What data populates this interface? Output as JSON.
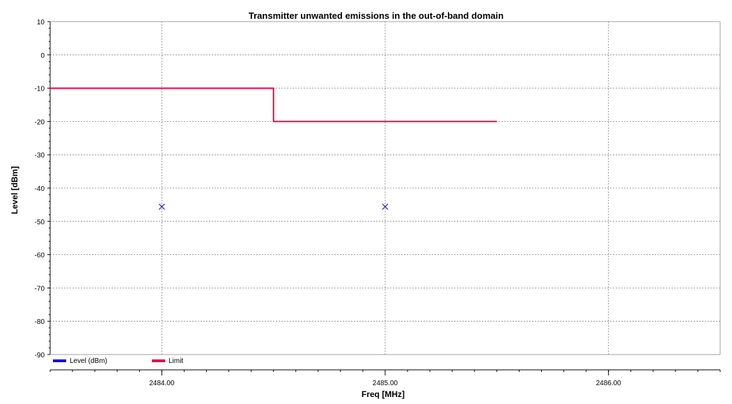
{
  "chart_data": {
    "type": "line",
    "title": "Transmitter unwanted emissions in the out-of-band domain",
    "xlabel": "Freq [MHz]",
    "ylabel": "Level [dBm]",
    "xlim": [
      2483.5,
      2486.5
    ],
    "ylim": [
      -90,
      10
    ],
    "x_ticks": [
      2484.0,
      2485.0,
      2486.0
    ],
    "x_tick_labels": [
      "2484.00",
      "2485.00",
      "2486.00"
    ],
    "y_ticks": [
      10,
      0,
      -10,
      -20,
      -30,
      -40,
      -50,
      -60,
      -70,
      -80,
      -90
    ],
    "y_tick_labels": [
      "10",
      "0",
      "-10",
      "-20",
      "-30",
      "-40",
      "-50",
      "-60",
      "-70",
      "-80",
      "-90"
    ],
    "grid": true,
    "legend_position": "bottom-left",
    "series": [
      {
        "name": "Level (dBm)",
        "color": "#0000ff",
        "style": "markers",
        "marker": "x",
        "x": [
          2484.0,
          2485.0
        ],
        "y": [
          -45.6,
          -45.6
        ]
      },
      {
        "name": "Limit",
        "color": "#ee0044",
        "style": "step-line",
        "x": [
          2483.5,
          2484.5,
          2484.5,
          2485.5
        ],
        "y": [
          -10,
          -10,
          -20,
          -20
        ]
      }
    ]
  }
}
